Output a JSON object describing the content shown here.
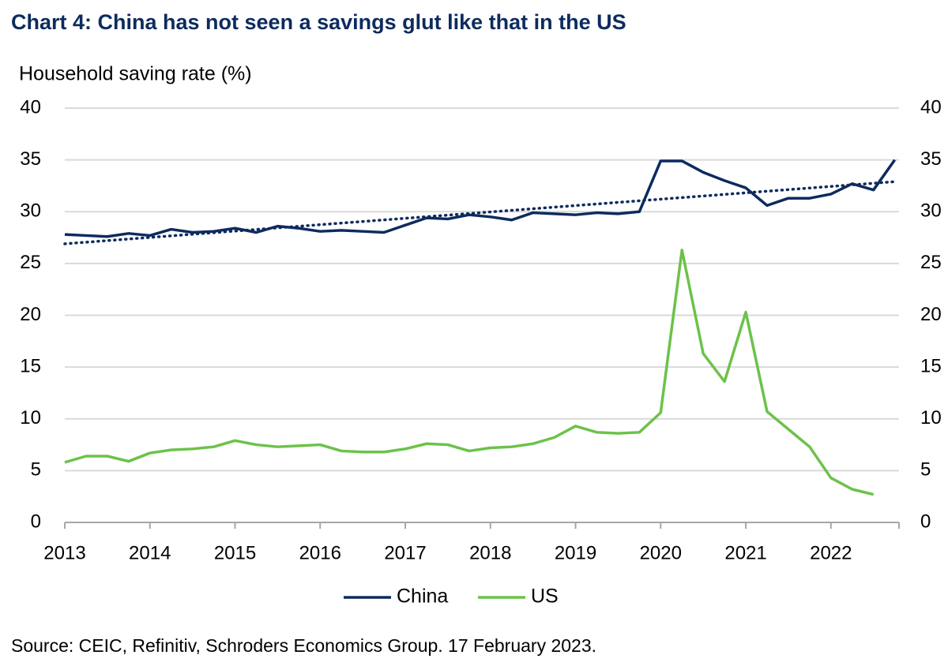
{
  "chart_data": {
    "type": "line",
    "title": "Chart 4: China has not seen a savings glut like that in the US",
    "y_label": "Household saving rate (%)",
    "source": "Source: CEIC, Refinitiv, Schroders Economics Group. 17 February 2023.",
    "x": [
      2013,
      2013.25,
      2013.5,
      2013.75,
      2014,
      2014.25,
      2014.5,
      2014.75,
      2015,
      2015.25,
      2015.5,
      2015.75,
      2016,
      2016.25,
      2016.5,
      2016.75,
      2017,
      2017.25,
      2017.5,
      2017.75,
      2018,
      2018.25,
      2018.5,
      2018.75,
      2019,
      2019.25,
      2019.5,
      2019.75,
      2020,
      2020.25,
      2020.5,
      2020.75,
      2021,
      2021.25,
      2021.5,
      2021.75,
      2022,
      2022.25,
      2022.5,
      2022.75
    ],
    "series": [
      {
        "name": "China",
        "color": "#0d2b5e",
        "values": [
          27.8,
          27.7,
          27.6,
          27.9,
          27.7,
          28.3,
          28.0,
          28.1,
          28.4,
          28.0,
          28.6,
          28.4,
          28.1,
          28.2,
          28.1,
          28.0,
          28.7,
          29.4,
          29.3,
          29.7,
          29.5,
          29.2,
          29.9,
          29.8,
          29.7,
          29.9,
          29.8,
          30.0,
          34.9,
          34.9,
          33.8,
          33.0,
          32.3,
          30.6,
          31.3,
          31.3,
          31.7,
          32.7,
          32.1,
          35.0
        ]
      },
      {
        "name": "US",
        "color": "#6cc24a",
        "values": [
          5.8,
          6.4,
          6.4,
          5.9,
          6.7,
          7.0,
          7.1,
          7.3,
          7.9,
          7.5,
          7.3,
          7.4,
          7.5,
          6.9,
          6.8,
          6.8,
          7.1,
          7.6,
          7.5,
          6.9,
          7.2,
          7.3,
          7.6,
          8.2,
          9.3,
          8.7,
          8.6,
          8.7,
          10.6,
          26.3,
          16.3,
          13.6,
          20.3,
          10.7,
          9.0,
          7.3,
          4.3,
          3.2,
          2.7,
          null
        ]
      }
    ],
    "trend": {
      "color": "#0d2b5e",
      "x": [
        2013,
        2022.75
      ],
      "values": [
        26.9,
        32.9
      ]
    },
    "xlim": [
      2013,
      2022.8
    ],
    "xticks": [
      2013,
      2014,
      2015,
      2016,
      2017,
      2018,
      2019,
      2020,
      2021,
      2022
    ],
    "ylim": [
      0,
      40
    ],
    "yticks": [
      0,
      5,
      10,
      15,
      20,
      25,
      30,
      35,
      40
    ],
    "y2lim": [
      0,
      40
    ],
    "y2ticks": [
      0,
      5,
      10,
      15,
      20,
      25,
      30,
      35,
      40
    ],
    "grid": true,
    "legend": "bottom"
  }
}
